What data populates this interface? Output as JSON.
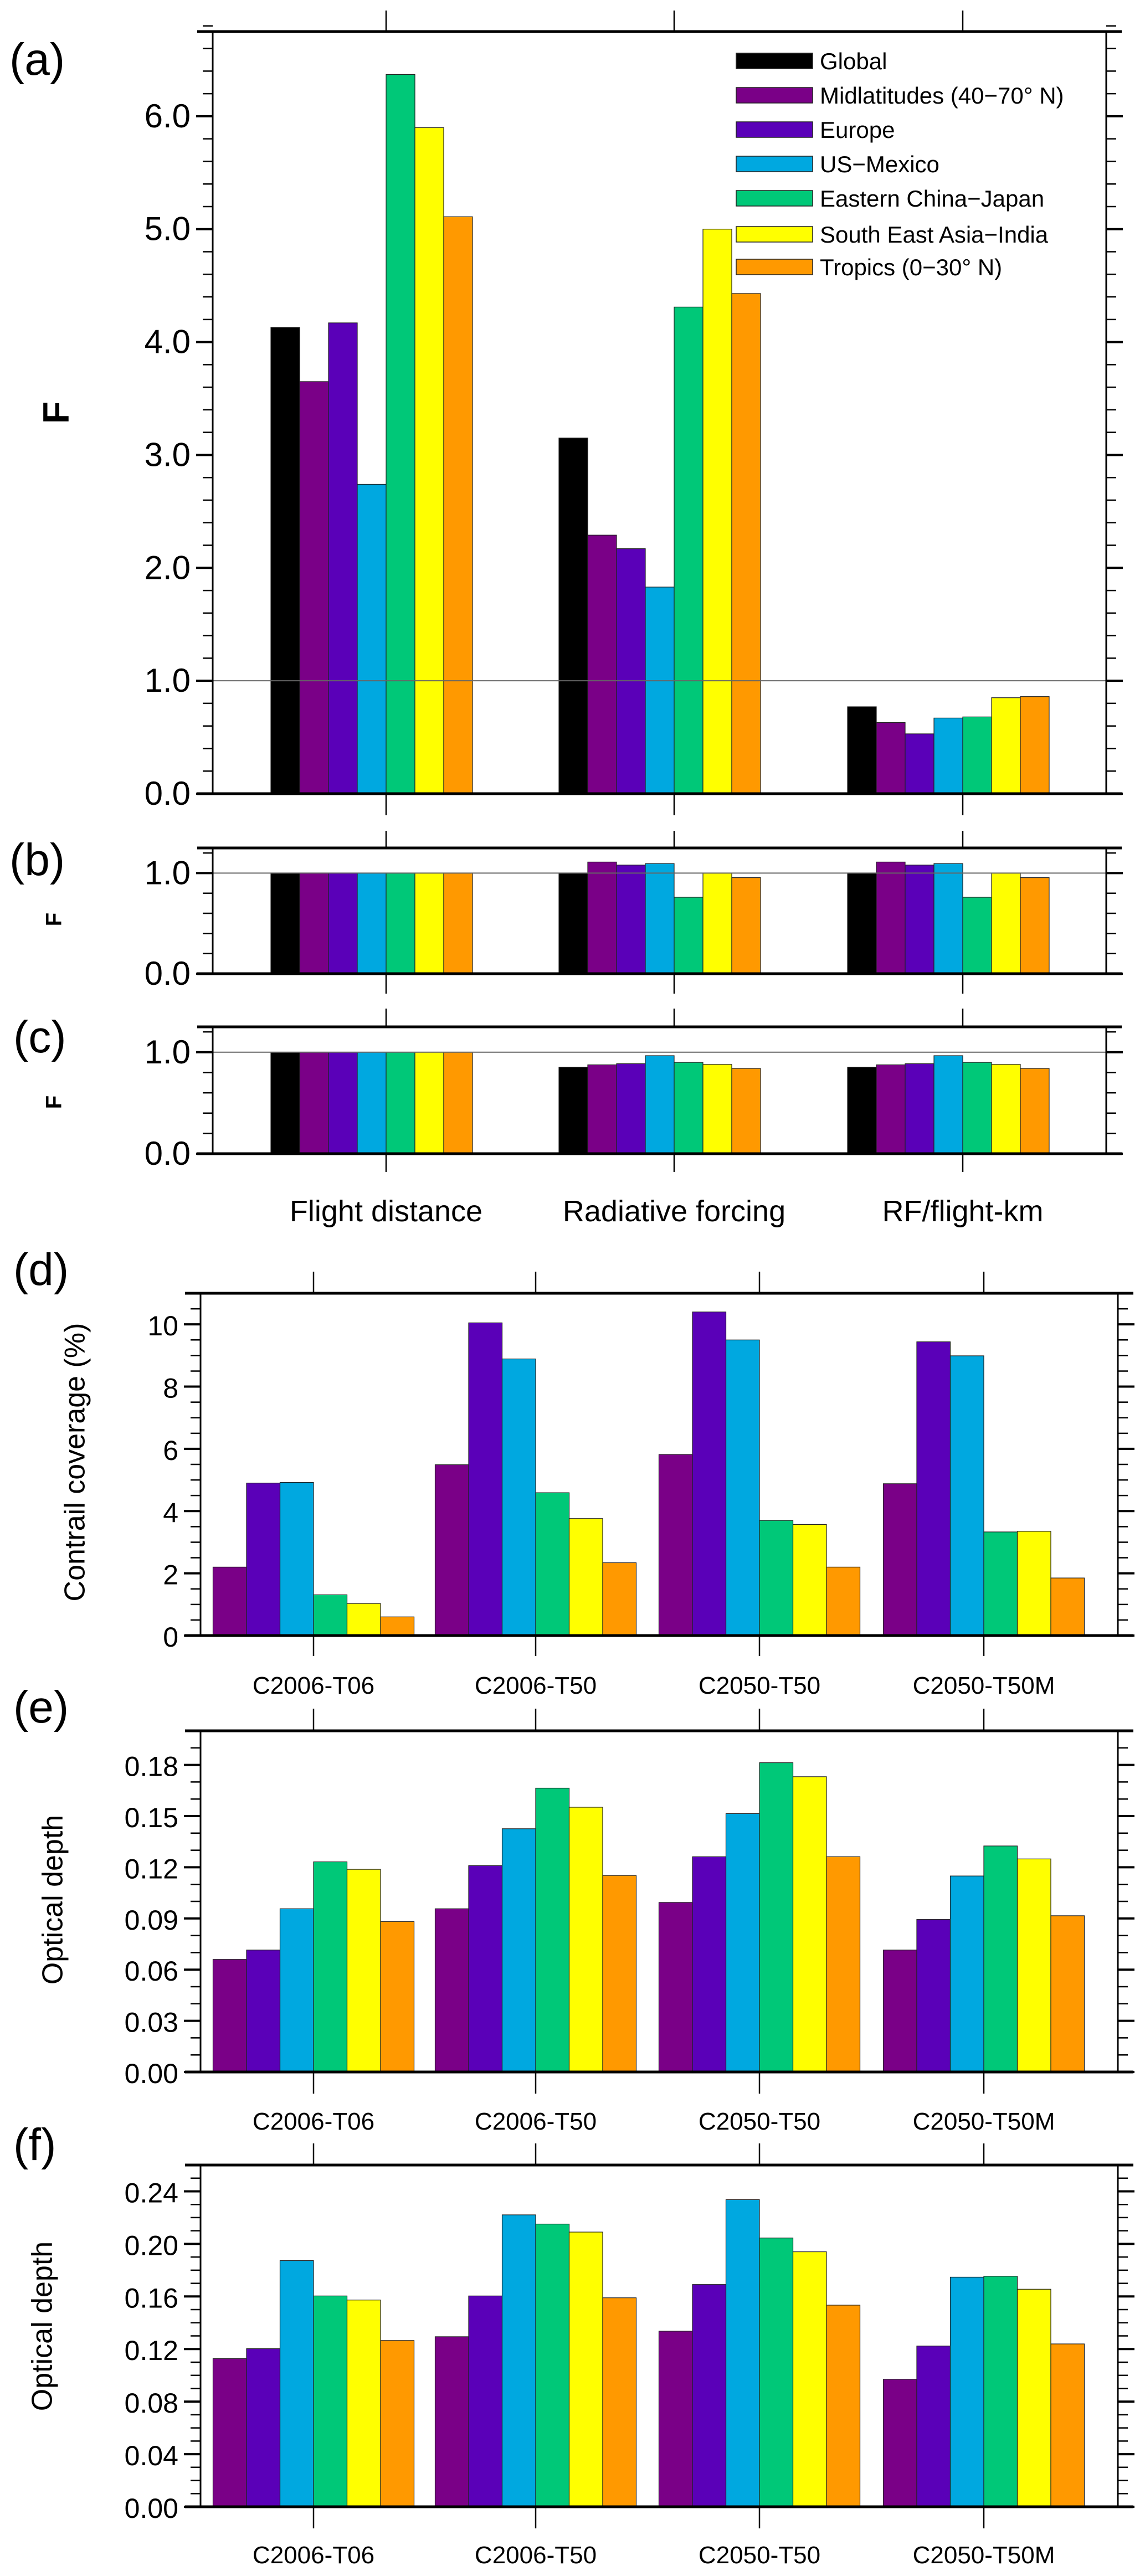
{
  "legend": {
    "items": [
      {
        "label": "Global",
        "color": "#000000"
      },
      {
        "label": "Midlatitudes (40−70° N)",
        "color": "#7a0087"
      },
      {
        "label": "Europe",
        "color": "#5a00b8"
      },
      {
        "label": "US−Mexico",
        "color": "#00a8e0"
      },
      {
        "label": "Eastern China−Japan",
        "color": "#00c878"
      },
      {
        "label": "South East Asia−India",
        "color": "#ffff00"
      },
      {
        "label": "Tropics (0−30° N)",
        "color": "#ff9900"
      }
    ]
  },
  "chart_data": [
    {
      "id": "a",
      "panel_label": "(a)",
      "type": "bar",
      "ylabel": "F",
      "ylim": [
        0,
        6.75
      ],
      "yticks": [
        "0.0",
        "1.0",
        "2.0",
        "3.0",
        "4.0",
        "5.0",
        "6.0"
      ],
      "ytick_values": [
        0,
        1,
        2,
        3,
        4,
        5,
        6
      ],
      "reference_line": 1.0,
      "series_values": [
        [
          4.13,
          3.15,
          0.77
        ],
        [
          3.65,
          2.29,
          0.63
        ],
        [
          4.17,
          2.17,
          0.53
        ],
        [
          2.74,
          1.83,
          0.67
        ],
        [
          6.37,
          4.31,
          0.68
        ],
        [
          5.9,
          5.0,
          0.85
        ],
        [
          5.11,
          4.43,
          0.86
        ]
      ]
    },
    {
      "id": "b",
      "panel_label": "(b)",
      "type": "bar",
      "ylabel": "F",
      "ylim": [
        0,
        1.25
      ],
      "yticks": [
        "0.0",
        "1.0"
      ],
      "ytick_values": [
        0,
        1
      ],
      "reference_line": 1.0,
      "series_values": [
        [
          1.0,
          1.0,
          1.0
        ],
        [
          1.0,
          1.11,
          1.11
        ],
        [
          1.0,
          1.08,
          1.08
        ],
        [
          1.0,
          1.095,
          1.095
        ],
        [
          1.0,
          0.76,
          0.76
        ],
        [
          1.0,
          1.0,
          1.0
        ],
        [
          1.0,
          0.955,
          0.955
        ]
      ]
    },
    {
      "id": "c",
      "panel_label": "(c)",
      "type": "bar",
      "ylabel": "F",
      "ylim": [
        0,
        1.25
      ],
      "yticks": [
        "0.0",
        "1.0"
      ],
      "ytick_values": [
        0,
        1
      ],
      "reference_line": 1.0,
      "categories": [
        "Flight distance",
        "Radiative forcing",
        "RF/flight-km"
      ],
      "series_values": [
        [
          1.0,
          0.853,
          0.853
        ],
        [
          1.0,
          0.876,
          0.876
        ],
        [
          1.0,
          0.887,
          0.887
        ],
        [
          1.0,
          0.966,
          0.966
        ],
        [
          1.0,
          0.9,
          0.9
        ],
        [
          1.0,
          0.88,
          0.88
        ],
        [
          1.0,
          0.84,
          0.84
        ]
      ]
    },
    {
      "id": "d",
      "panel_label": "(d)",
      "type": "bar",
      "ylabel": "Contrail coverage (%)",
      "ylim": [
        0,
        11
      ],
      "yticks": [
        "0",
        "2",
        "4",
        "6",
        "8",
        "10"
      ],
      "ytick_values": [
        0,
        2,
        4,
        6,
        8,
        10
      ],
      "categories": [
        "C2006-T06",
        "C2006-T50",
        "C2050-T50",
        "C2050-T50M"
      ],
      "series_start": 1,
      "series_values": [
        [
          2.2,
          5.49,
          5.82,
          4.88
        ],
        [
          4.9,
          10.05,
          10.4,
          9.44
        ],
        [
          4.92,
          8.89,
          9.5,
          8.99
        ],
        [
          1.31,
          4.59,
          3.7,
          3.33
        ],
        [
          1.03,
          3.76,
          3.57,
          3.35
        ],
        [
          0.6,
          2.34,
          2.2,
          1.85
        ]
      ]
    },
    {
      "id": "e",
      "panel_label": "(e)",
      "type": "bar",
      "ylabel": "Optical depth",
      "ylim": [
        0,
        0.2
      ],
      "yticks": [
        "0.00",
        "0.03",
        "0.06",
        "0.09",
        "0.12",
        "0.15",
        "0.18"
      ],
      "ytick_values": [
        0,
        0.03,
        0.06,
        0.09,
        0.12,
        0.15,
        0.18
      ],
      "categories": [
        "C2006-T06",
        "C2006-T50",
        "C2050-T50",
        "C2050-T50M"
      ],
      "series_start": 1,
      "series_values": [
        [
          0.066,
          0.0957,
          0.0994,
          0.0715
        ],
        [
          0.0715,
          0.121,
          0.1262,
          0.0894
        ],
        [
          0.0957,
          0.1426,
          0.1515,
          0.1149
        ],
        [
          0.1232,
          0.1664,
          0.1813,
          0.1325
        ],
        [
          0.1188,
          0.1552,
          0.1731,
          0.1249
        ],
        [
          0.0882,
          0.1152,
          0.1262,
          0.0916
        ]
      ]
    },
    {
      "id": "f",
      "panel_label": "(f)",
      "type": "bar",
      "ylabel": "Optical depth",
      "ylim": [
        0,
        0.26
      ],
      "yticks": [
        "0.00",
        "0.04",
        "0.08",
        "0.12",
        "0.16",
        "0.20",
        "0.24"
      ],
      "ytick_values": [
        0,
        0.04,
        0.08,
        0.12,
        0.16,
        0.2,
        0.24
      ],
      "categories": [
        "C2006-T06",
        "C2006-T50",
        "C2050-T50",
        "C2050-T50M"
      ],
      "series_start": 1,
      "series_values": [
        [
          0.1128,
          0.1294,
          0.1336,
          0.097
        ],
        [
          0.1203,
          0.1604,
          0.1691,
          0.1223
        ],
        [
          0.1873,
          0.2221,
          0.2337,
          0.1747
        ],
        [
          0.1604,
          0.2151,
          0.2045,
          0.1754
        ],
        [
          0.1573,
          0.209,
          0.194,
          0.1655
        ],
        [
          0.1265,
          0.159,
          0.1534,
          0.1239
        ]
      ]
    }
  ]
}
